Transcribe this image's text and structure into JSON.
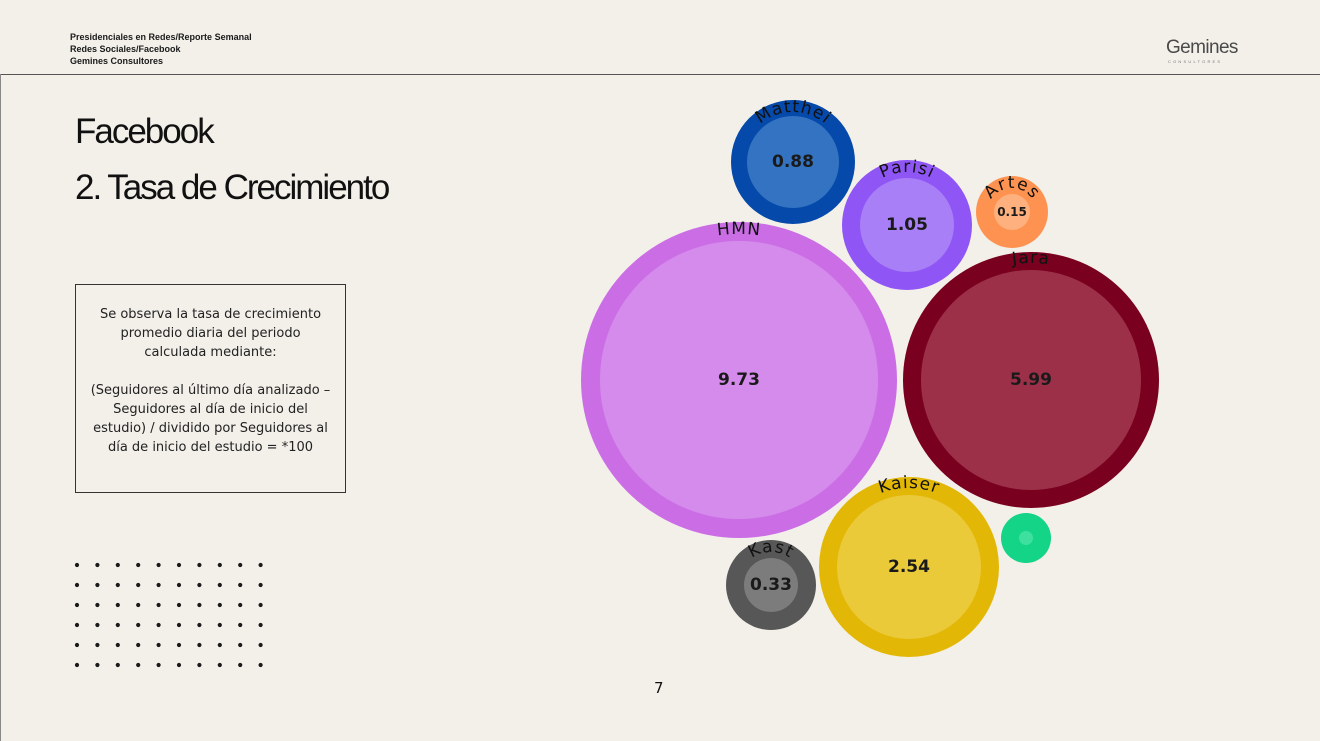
{
  "header": {
    "line1": "Presidenciales en Redes/Reporte Semanal",
    "line2": "Redes Sociales/Facebook",
    "line3": "Gemines Consultores"
  },
  "logo": {
    "name": "Gemines",
    "tagline": "CONSULTORES"
  },
  "title": {
    "line1": "Facebook",
    "line2": "2. Tasa de Crecimiento"
  },
  "note": {
    "paragraph1": "Se observa la tasa de crecimiento promedio diaria del periodo calculada mediante:",
    "paragraph2": "(Seguidores al último día analizado – Seguidores al día de inicio del estudio) / dividido por Seguidores al día de inicio del estudio = *100"
  },
  "page_number": "7",
  "decoration": {
    "dot_grid": {
      "rows": 6,
      "cols": 10,
      "color": "#1a1a1a"
    }
  },
  "chart_data": {
    "type": "bubble",
    "title": "",
    "series": [
      {
        "name": "HMN",
        "value": 9.73,
        "value_label": "9.73",
        "outer_color": "#cb6ee6",
        "inner_color": "#d58beb"
      },
      {
        "name": "Jara",
        "value": 5.99,
        "value_label": "5.99",
        "outer_color": "#7a0020",
        "inner_color": "#9c3048"
      },
      {
        "name": "Kaiser",
        "value": 2.54,
        "value_label": "2.54",
        "outer_color": "#e3b706",
        "inner_color": "#ebca3a"
      },
      {
        "name": "Parisi",
        "value": 1.05,
        "value_label": "1.05",
        "outer_color": "#8f55f5",
        "inner_color": "#a87ff7"
      },
      {
        "name": "Matthei",
        "value": 0.88,
        "value_label": "0.88",
        "outer_color": "#0549aa",
        "inner_color": "#3373c1"
      },
      {
        "name": "Kast",
        "value": 0.33,
        "value_label": "0.33",
        "outer_color": "#575757",
        "inner_color": "#7c7c7c"
      },
      {
        "name": "Artes",
        "value": 0.15,
        "value_label": "0.15",
        "outer_color": "#fe9351",
        "inner_color": "#feb07e"
      },
      {
        "name": "",
        "value": null,
        "value_label": "",
        "outer_color": "#14d488",
        "inner_color": "#3ee0a0"
      }
    ]
  }
}
